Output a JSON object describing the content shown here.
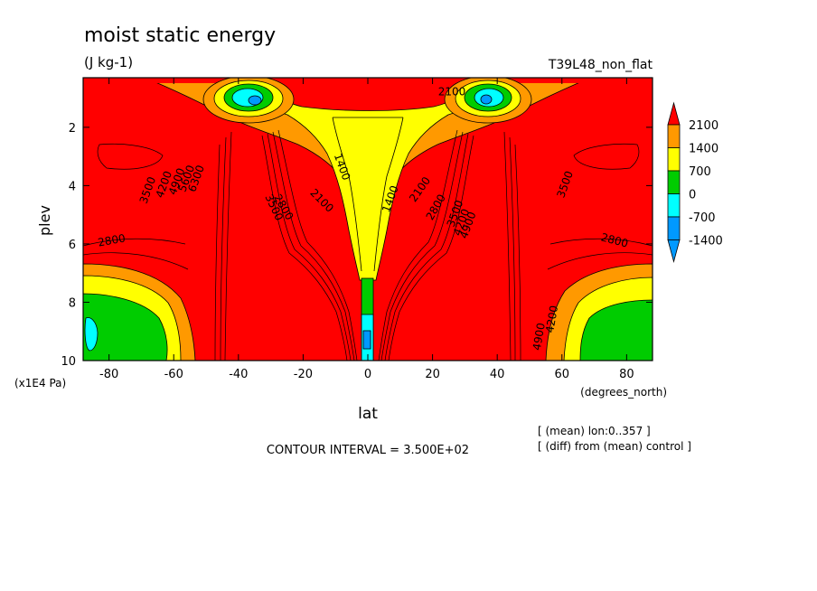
{
  "chart_data": {
    "type": "heatmap",
    "title": "moist static energy",
    "units": "(J kg-1)",
    "run_label": "T39L48_non_flat",
    "xlabel": "lat",
    "x_units": "(degrees_north)",
    "ylabel": "plev",
    "y_units": "(x1E4 Pa)",
    "x_ticks": [
      -80,
      -60,
      -40,
      -20,
      0,
      20,
      40,
      60,
      80
    ],
    "y_ticks": [
      2,
      4,
      6,
      8,
      10
    ],
    "xlim": [
      -88,
      88
    ],
    "ylim": [
      0.3,
      10
    ],
    "y_inverted": true,
    "contour_interval_text": "CONTOUR INTERVAL = 3.500E+02",
    "notes": [
      "[ (mean) lon:0..357 ]",
      "[ (diff) from (mean) control ]"
    ],
    "colorbar": {
      "labels": [
        "2100",
        "1400",
        "700",
        "0",
        "-700",
        "-1400"
      ],
      "colors": [
        "#ff0000",
        "#ff9900",
        "#ffff00",
        "#00cc00",
        "#00ffff",
        "#0099ff"
      ]
    },
    "contour_labels": [
      {
        "text": "3500",
        "lat": -67,
        "p": 4.2,
        "rot": -70
      },
      {
        "text": "4200",
        "lat": -62,
        "p": 4.0,
        "rot": -70
      },
      {
        "text": "4900",
        "lat": -58,
        "p": 3.9,
        "rot": -70
      },
      {
        "text": "5600",
        "lat": -55,
        "p": 3.8,
        "rot": -70
      },
      {
        "text": "6300",
        "lat": -52,
        "p": 3.8,
        "rot": -70
      },
      {
        "text": "2800",
        "lat": -79,
        "p": 6.0,
        "rot": -10
      },
      {
        "text": "2800",
        "lat": -27,
        "p": 4.8,
        "rot": 60
      },
      {
        "text": "3500",
        "lat": -30,
        "p": 4.8,
        "rot": 65
      },
      {
        "text": "2100",
        "lat": -15,
        "p": 4.6,
        "rot": 45
      },
      {
        "text": "1400",
        "lat": -9,
        "p": 3.4,
        "rot": 70
      },
      {
        "text": "1400",
        "lat": 8,
        "p": 4.5,
        "rot": -70
      },
      {
        "text": "2100",
        "lat": 17,
        "p": 4.2,
        "rot": -55
      },
      {
        "text": "2800",
        "lat": 22,
        "p": 4.8,
        "rot": -60
      },
      {
        "text": "3500",
        "lat": 28,
        "p": 5.0,
        "rot": -70
      },
      {
        "text": "4200",
        "lat": 30,
        "p": 5.3,
        "rot": -70
      },
      {
        "text": "4900",
        "lat": 32,
        "p": 5.4,
        "rot": -70
      },
      {
        "text": "3500",
        "lat": 62,
        "p": 4.0,
        "rot": -70
      },
      {
        "text": "2800",
        "lat": 76,
        "p": 6.0,
        "rot": 15
      },
      {
        "text": "4200",
        "lat": 58,
        "p": 8.6,
        "rot": -80
      },
      {
        "text": "4900",
        "lat": 54,
        "p": 9.2,
        "rot": -80
      },
      {
        "text": "2100",
        "lat": 26,
        "p": 0.9,
        "rot": 0
      }
    ]
  }
}
